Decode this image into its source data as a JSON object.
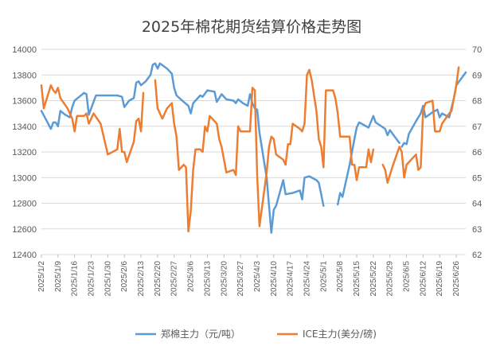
{
  "chart_data": {
    "type": "line",
    "title": "2025年棉花期货结算价格走势图",
    "y_left": {
      "min": 12400,
      "max": 14000,
      "step": 200,
      "ticks": [
        "12400",
        "12600",
        "12800",
        "13000",
        "13200",
        "13400",
        "13600",
        "13800",
        "14000"
      ]
    },
    "y_right": {
      "min": 62,
      "max": 70,
      "step": 1,
      "ticks": [
        "62",
        "63",
        "64",
        "65",
        "66",
        "67",
        "68",
        "69",
        "70"
      ]
    },
    "x_range": [
      "2025/1/2",
      "2025/6/30"
    ],
    "x_ticks": [
      "2025/1/2",
      "2025/1/9",
      "2025/1/16",
      "2025/1/23",
      "2025/1/30",
      "2025/2/6",
      "2025/2/13",
      "2025/2/20",
      "2025/2/27",
      "2025/3/6",
      "2025/3/13",
      "2025/3/20",
      "2025/3/27",
      "2025/4/3",
      "2025/4/10",
      "2025/4/17",
      "2025/4/24",
      "2025/5/1",
      "2025/5/8",
      "2025/5/15",
      "2025/5/22",
      "2025/5/29",
      "2025/6/5",
      "2025/6/12",
      "2025/6/19",
      "2025/6/26"
    ],
    "grid": true,
    "legend": "bottom",
    "series": [
      {
        "name": "郑棉主力（元/吨）",
        "axis": "left",
        "color": "#5b9bd5",
        "segments": [
          [
            [
              "2025/1/2",
              13520
            ],
            [
              "2025/1/4",
              13450
            ],
            [
              "2025/1/6",
              13380
            ],
            [
              "2025/1/7",
              13430
            ],
            [
              "2025/1/8",
              13430
            ],
            [
              "2025/1/9",
              13400
            ],
            [
              "2025/1/10",
              13520
            ],
            [
              "2025/1/12",
              13490
            ],
            [
              "2025/1/14",
              13470
            ],
            [
              "2025/1/15",
              13550
            ],
            [
              "2025/1/16",
              13600
            ],
            [
              "2025/1/18",
              13630
            ],
            [
              "2025/1/20",
              13660
            ],
            [
              "2025/1/21",
              13650
            ],
            [
              "2025/1/22",
              13490
            ],
            [
              "2025/1/23",
              13540
            ],
            [
              "2025/1/25",
              13640
            ],
            [
              "2025/1/27",
              13640
            ],
            [
              "2025/1/30",
              13640
            ],
            [
              "2025/2/3",
              13640
            ],
            [
              "2025/2/5",
              13630
            ],
            [
              "2025/2/6",
              13550
            ],
            [
              "2025/2/8",
              13600
            ],
            [
              "2025/2/10",
              13620
            ],
            [
              "2025/2/11",
              13740
            ],
            [
              "2025/2/12",
              13750
            ],
            [
              "2025/2/13",
              13720
            ],
            [
              "2025/2/15",
              13750
            ],
            [
              "2025/2/17",
              13800
            ],
            [
              "2025/2/18",
              13880
            ],
            [
              "2025/2/19",
              13890
            ],
            [
              "2025/2/20",
              13850
            ],
            [
              "2025/2/21",
              13890
            ],
            [
              "2025/2/24",
              13850
            ],
            [
              "2025/2/26",
              13810
            ],
            [
              "2025/2/27",
              13700
            ],
            [
              "2025/2/28",
              13640
            ],
            [
              "2025/3/3",
              13590
            ],
            [
              "2025/3/5",
              13560
            ],
            [
              "2025/3/6",
              13500
            ],
            [
              "2025/3/7",
              13580
            ],
            [
              "2025/3/10",
              13640
            ],
            [
              "2025/3/11",
              13630
            ],
            [
              "2025/3/13",
              13680
            ],
            [
              "2025/3/16",
              13670
            ],
            [
              "2025/3/17",
              13590
            ],
            [
              "2025/3/19",
              13650
            ],
            [
              "2025/3/21",
              13610
            ],
            [
              "2025/3/24",
              13600
            ],
            [
              "2025/3/25",
              13580
            ],
            [
              "2025/3/26",
              13610
            ],
            [
              "2025/3/28",
              13580
            ],
            [
              "2025/3/30",
              13560
            ],
            [
              "2025/3/31",
              13650
            ],
            [
              "2025/4/1",
              13580
            ],
            [
              "2025/4/2",
              13540
            ],
            [
              "2025/4/3",
              13530
            ],
            [
              "2025/4/4",
              13350
            ],
            [
              "2025/4/7",
              13000
            ],
            [
              "2025/4/9",
              12570
            ],
            [
              "2025/4/10",
              12750
            ],
            [
              "2025/4/11",
              12780
            ],
            [
              "2025/4/14",
              12980
            ],
            [
              "2025/4/15",
              12870
            ],
            [
              "2025/4/18",
              12880
            ],
            [
              "2025/4/21",
              12900
            ],
            [
              "2025/4/22",
              12830
            ],
            [
              "2025/4/23",
              13000
            ],
            [
              "2025/4/25",
              13010
            ],
            [
              "2025/4/28",
              12980
            ],
            [
              "2025/4/29",
              12960
            ],
            [
              "2025/4/30",
              12870
            ],
            [
              "2025/5/1",
              12780
            ]
          ],
          [
            [
              "2025/5/7",
              12790
            ],
            [
              "2025/5/8",
              12880
            ],
            [
              "2025/5/9",
              12850
            ],
            [
              "2025/5/12",
              13100
            ],
            [
              "2025/5/14",
              13300
            ],
            [
              "2025/5/15",
              13390
            ],
            [
              "2025/5/16",
              13430
            ],
            [
              "2025/5/20",
              13390
            ],
            [
              "2025/5/22",
              13480
            ],
            [
              "2025/5/23",
              13430
            ],
            [
              "2025/5/27",
              13380
            ],
            [
              "2025/5/28",
              13330
            ],
            [
              "2025/5/29",
              13370
            ],
            [
              "2025/6/2",
              13270
            ]
          ],
          [
            [
              "2025/6/3",
              13240
            ],
            [
              "2025/6/4",
              13270
            ],
            [
              "2025/6/5",
              13260
            ],
            [
              "2025/6/6",
              13340
            ],
            [
              "2025/6/9",
              13440
            ],
            [
              "2025/6/11",
              13500
            ],
            [
              "2025/6/12",
              13560
            ],
            [
              "2025/6/13",
              13470
            ],
            [
              "2025/6/16",
              13510
            ],
            [
              "2025/6/18",
              13530
            ],
            [
              "2025/6/19",
              13470
            ],
            [
              "2025/6/20",
              13500
            ],
            [
              "2025/6/23",
              13470
            ],
            [
              "2025/6/25",
              13620
            ],
            [
              "2025/6/26",
              13720
            ],
            [
              "2025/6/30",
              13820
            ]
          ]
        ]
      },
      {
        "name": "ICE主力(美分/磅)",
        "axis": "right",
        "color": "#ed7d31",
        "segments": [
          [
            [
              "2025/1/2",
              68.6
            ],
            [
              "2025/1/3",
              67.7
            ],
            [
              "2025/1/6",
              68.6
            ],
            [
              "2025/1/7",
              68.4
            ],
            [
              "2025/1/8",
              68.3
            ],
            [
              "2025/1/9",
              68.5
            ],
            [
              "2025/1/10",
              68.1
            ],
            [
              "2025/1/13",
              67.7
            ],
            [
              "2025/1/15",
              67.3
            ],
            [
              "2025/1/16",
              66.8
            ],
            [
              "2025/1/17",
              67.4
            ],
            [
              "2025/1/20",
              67.4
            ],
            [
              "2025/1/21",
              67.5
            ],
            [
              "2025/1/22",
              67.1
            ],
            [
              "2025/1/24",
              67.5
            ],
            [
              "2025/1/27",
              67.1
            ],
            [
              "2025/1/29",
              66.3
            ],
            [
              "2025/1/30",
              65.9
            ],
            [
              "2025/2/3",
              66.1
            ],
            [
              "2025/2/4",
              66.9
            ],
            [
              "2025/2/5",
              66.0
            ],
            [
              "2025/2/6",
              66.0
            ],
            [
              "2025/2/7",
              65.6
            ],
            [
              "2025/2/10",
              66.4
            ],
            [
              "2025/2/11",
              67.2
            ],
            [
              "2025/2/12",
              67.3
            ],
            [
              "2025/2/13",
              66.8
            ],
            [
              "2025/2/14",
              68.3
            ]
          ],
          [
            [
              "2025/2/19",
              68.8
            ],
            [
              "2025/2/20",
              67.7
            ],
            [
              "2025/2/22",
              67.3
            ],
            [
              "2025/2/24",
              67.7
            ],
            [
              "2025/2/26",
              67.9
            ],
            [
              "2025/2/27",
              67.1
            ],
            [
              "2025/2/28",
              66.6
            ],
            [
              "2025/3/1",
              65.3
            ],
            [
              "2025/3/3",
              65.5
            ],
            [
              "2025/3/4",
              65.4
            ],
            [
              "2025/3/5",
              62.9
            ],
            [
              "2025/3/6",
              63.7
            ],
            [
              "2025/3/7",
              65.3
            ],
            [
              "2025/3/8",
              66.1
            ],
            [
              "2025/3/10",
              66.1
            ],
            [
              "2025/3/11",
              66.0
            ],
            [
              "2025/3/12",
              67.0
            ],
            [
              "2025/3/13",
              66.8
            ],
            [
              "2025/3/14",
              67.4
            ],
            [
              "2025/3/17",
              67.1
            ],
            [
              "2025/3/18",
              66.5
            ],
            [
              "2025/3/19",
              66.2
            ],
            [
              "2025/3/21",
              65.2
            ],
            [
              "2025/3/24",
              65.3
            ],
            [
              "2025/3/25",
              65.1
            ],
            [
              "2025/3/26",
              67.0
            ],
            [
              "2025/3/27",
              66.8
            ],
            [
              "2025/3/31",
              66.8
            ],
            [
              "2025/4/1",
              68.5
            ],
            [
              "2025/4/2",
              68.4
            ],
            [
              "2025/4/3",
              65.1
            ],
            [
              "2025/4/4",
              63.1
            ],
            [
              "2025/4/7",
              65.2
            ],
            [
              "2025/4/8",
              66.2
            ],
            [
              "2025/4/9",
              66.6
            ],
            [
              "2025/4/10",
              66.5
            ],
            [
              "2025/4/11",
              65.9
            ],
            [
              "2025/4/14",
              65.7
            ],
            [
              "2025/4/15",
              65.5
            ],
            [
              "2025/4/16",
              66.3
            ],
            [
              "2025/4/17",
              66.3
            ],
            [
              "2025/4/18",
              67.1
            ],
            [
              "2025/4/21",
              66.9
            ],
            [
              "2025/4/22",
              66.8
            ],
            [
              "2025/4/23",
              67.1
            ],
            [
              "2025/4/24",
              69.0
            ],
            [
              "2025/4/25",
              69.2
            ],
            [
              "2025/4/26",
              68.8
            ],
            [
              "2025/4/28",
              67.6
            ],
            [
              "2025/4/29",
              66.5
            ],
            [
              "2025/4/30",
              66.2
            ],
            [
              "2025/5/1",
              65.4
            ],
            [
              "2025/5/2",
              68.4
            ],
            [
              "2025/5/5",
              68.4
            ],
            [
              "2025/5/6",
              68.1
            ],
            [
              "2025/5/7",
              67.5
            ],
            [
              "2025/5/8",
              66.6
            ],
            [
              "2025/5/9",
              66.6
            ],
            [
              "2025/5/12",
              66.6
            ],
            [
              "2025/5/13",
              65.5
            ],
            [
              "2025/5/14",
              65.5
            ],
            [
              "2025/5/15",
              64.9
            ],
            [
              "2025/5/16",
              65.4
            ],
            [
              "2025/5/19",
              65.4
            ],
            [
              "2025/5/20",
              66.1
            ],
            [
              "2025/5/21",
              65.6
            ],
            [
              "2025/5/22",
              66.1
            ]
          ],
          [
            [
              "2025/5/26",
              65.5
            ],
            [
              "2025/5/27",
              65.3
            ],
            [
              "2025/5/28",
              64.8
            ],
            [
              "2025/5/30",
              65.4
            ],
            [
              "2025/6/2",
              66.2
            ],
            [
              "2025/6/3",
              66.0
            ],
            [
              "2025/6/4",
              65.0
            ],
            [
              "2025/6/5",
              65.5
            ],
            [
              "2025/6/6",
              65.6
            ],
            [
              "2025/6/9",
              65.9
            ],
            [
              "2025/6/10",
              65.3
            ],
            [
              "2025/6/11",
              65.4
            ],
            [
              "2025/6/12",
              67.6
            ],
            [
              "2025/6/13",
              67.9
            ],
            [
              "2025/6/16",
              68.0
            ],
            [
              "2025/6/17",
              66.8
            ],
            [
              "2025/6/18",
              66.8
            ],
            [
              "2025/6/19",
              66.8
            ],
            [
              "2025/6/20",
              67.1
            ],
            [
              "2025/6/23",
              67.5
            ],
            [
              "2025/6/24",
              67.6
            ],
            [
              "2025/6/26",
              68.6
            ],
            [
              "2025/6/27",
              69.3
            ]
          ]
        ]
      }
    ]
  }
}
